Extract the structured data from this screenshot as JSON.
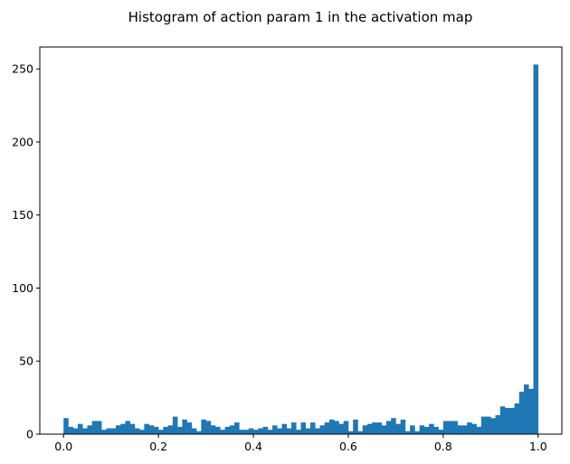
{
  "chart_data": {
    "type": "bar",
    "title": "Histogram of action param 1 in the activation map",
    "xlabel": "",
    "ylabel": "",
    "bin_start": 0.0,
    "bin_width": 0.01,
    "xlim": [
      -0.05,
      1.05
    ],
    "ylim": [
      0,
      265
    ],
    "xticks": [
      0.0,
      0.2,
      0.4,
      0.6,
      0.8,
      1.0
    ],
    "xtick_labels": [
      "0.0",
      "0.2",
      "0.4",
      "0.6",
      "0.8",
      "1.0"
    ],
    "yticks": [
      0,
      50,
      100,
      150,
      200,
      250
    ],
    "ytick_labels": [
      "0",
      "50",
      "100",
      "150",
      "200",
      "250"
    ],
    "bar_color": "#1f77b4",
    "values": [
      11,
      5,
      4,
      7,
      4,
      6,
      9,
      9,
      3,
      4,
      4,
      6,
      7,
      9,
      7,
      4,
      3,
      7,
      6,
      5,
      3,
      5,
      6,
      12,
      5,
      10,
      8,
      4,
      2,
      10,
      9,
      6,
      5,
      3,
      5,
      6,
      8,
      3,
      3,
      4,
      3,
      4,
      5,
      3,
      6,
      4,
      7,
      4,
      8,
      3,
      8,
      4,
      8,
      4,
      6,
      8,
      10,
      9,
      7,
      9,
      2,
      10,
      2,
      6,
      7,
      8,
      8,
      6,
      9,
      11,
      7,
      10,
      2,
      6,
      2,
      6,
      5,
      7,
      5,
      3,
      9,
      9,
      9,
      6,
      6,
      8,
      7,
      5,
      12,
      12,
      11,
      13,
      19,
      18,
      18,
      21,
      29,
      34,
      31,
      253
    ]
  }
}
